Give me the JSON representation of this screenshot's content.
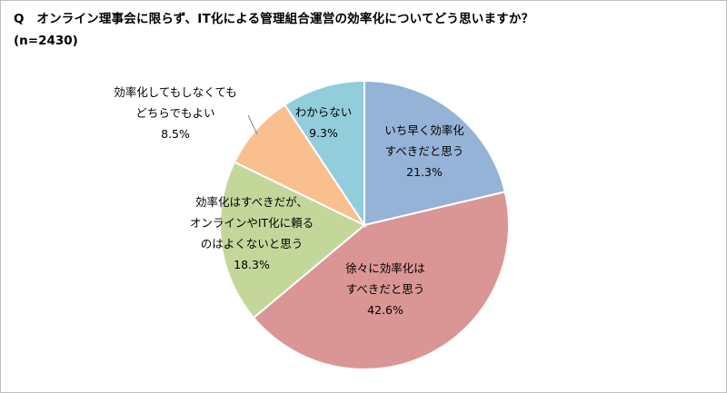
{
  "title": "Q　オンライン理事会に限らず、IT化による管理組合運営の効率化についてどう思いますか？",
  "subtitle": "(n=2430)",
  "chart_data": {
    "type": "pie",
    "title": "Q　オンライン理事会に限らず、IT化による管理組合運営の効率化についてどう思いますか？",
    "subtitle": "(n=2430)",
    "start": "12 o'clock",
    "direction": "clockwise",
    "slices": [
      {
        "label_lines": [
          "いち早く効率化",
          "すべきだと思う"
        ],
        "value": 21.3,
        "value_label": "21.3%",
        "color": "#95b3d7"
      },
      {
        "label_lines": [
          "徐々に効率化は",
          "すべきだと思う"
        ],
        "value": 42.6,
        "value_label": "42.6%",
        "color": "#da9694"
      },
      {
        "label_lines": [
          "効率化はすべきだが、",
          "オンラインやIT化に頼る",
          "のはよくないと思う"
        ],
        "value": 18.3,
        "value_label": "18.3%",
        "color": "#c4d79b"
      },
      {
        "label_lines": [
          "効率化してもしなくても",
          "どちらでもよい"
        ],
        "value": 8.5,
        "value_label": "8.5%",
        "color": "#fabf8f"
      },
      {
        "label_lines": [
          "わからない"
        ],
        "value": 9.3,
        "value_label": "9.3%",
        "color": "#92cddc"
      }
    ]
  }
}
